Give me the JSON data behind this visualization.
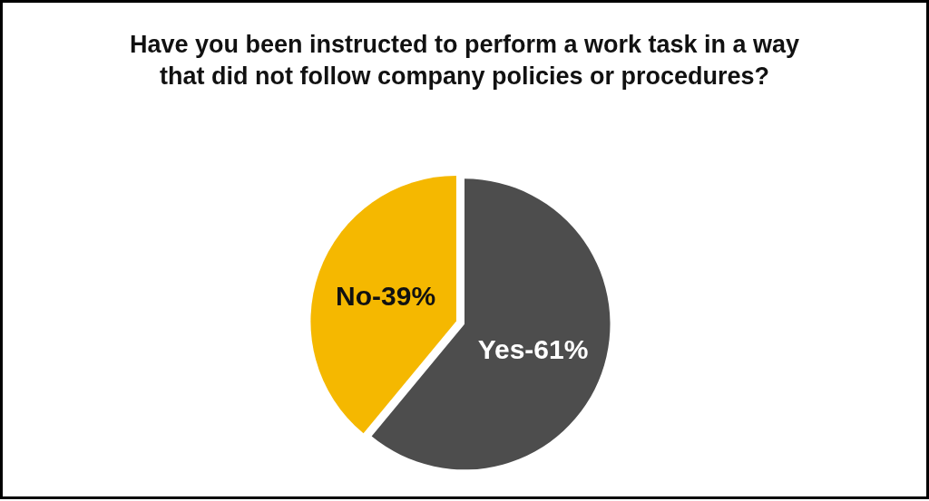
{
  "chart_data": {
    "type": "pie",
    "title": "Have you been instructed to perform a work task in a way\nthat did not follow company policies or procedures?",
    "categories": [
      "Yes",
      "No"
    ],
    "values": [
      61,
      39
    ],
    "colors": [
      "#4d4d4d",
      "#f5b800"
    ],
    "value_labels": [
      "61%",
      "39%"
    ],
    "legend": false
  }
}
